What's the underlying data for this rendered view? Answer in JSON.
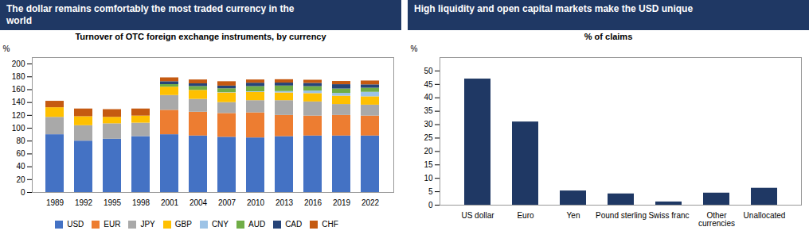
{
  "chart_data": [
    {
      "type": "bar",
      "title": "The dollar remains comfortably the most traded currency in the\nworld",
      "subtitle": "Turnover of OTC foreign exchange instruments, by currency",
      "ylabel": "%",
      "stacked": true,
      "legend": "bottom",
      "categories": [
        "1989",
        "1992",
        "1995",
        "1998",
        "2001",
        "2004",
        "2007",
        "2010",
        "2013",
        "2016",
        "2019",
        "2022"
      ],
      "series": [
        {
          "name": "USD",
          "color": "#4472C4",
          "values": [
            90,
            80,
            83,
            87,
            90,
            88,
            86,
            85,
            87,
            88,
            88,
            88
          ]
        },
        {
          "name": "EUR",
          "color": "#ED7D31",
          "values": [
            0,
            0,
            0,
            0,
            38,
            37,
            37,
            39,
            33,
            31,
            32,
            31
          ]
        },
        {
          "name": "JPY",
          "color": "#A9A9A9",
          "values": [
            27,
            24,
            24,
            21,
            23,
            20,
            17,
            19,
            23,
            22,
            17,
            17
          ]
        },
        {
          "name": "GBP",
          "color": "#FFC000",
          "values": [
            15,
            14,
            10,
            11,
            13,
            14,
            15,
            13,
            12,
            13,
            13,
            13
          ]
        },
        {
          "name": "CNY",
          "color": "#9DC3E6",
          "values": [
            0,
            0,
            0,
            0,
            0,
            0,
            0.5,
            0.9,
            2.2,
            4,
            4.3,
            7
          ]
        },
        {
          "name": "AUD",
          "color": "#70AD47",
          "values": [
            0,
            0,
            0,
            0,
            4,
            6,
            6,
            8,
            8.6,
            6.8,
            6.8,
            6.4
          ]
        },
        {
          "name": "CAD",
          "color": "#264478",
          "values": [
            0,
            0,
            0,
            0,
            4.5,
            4.2,
            4.2,
            5.3,
            4.6,
            5.1,
            6.8,
            5.2
          ]
        },
        {
          "name": "CHF",
          "color": "#C55A11",
          "values": [
            10,
            12,
            12,
            11,
            6,
            6,
            6.8,
            5,
            5.2,
            4.9,
            5,
            6
          ]
        }
      ],
      "ylim": [
        0,
        210
      ],
      "yticks": [
        0,
        20,
        40,
        60,
        80,
        100,
        120,
        140,
        160,
        180,
        200
      ]
    },
    {
      "type": "bar",
      "title": "High liquidity and open capital markets make the USD unique",
      "subtitle": "% of claims",
      "ylabel": "%",
      "categories": [
        "US dollar",
        "Euro",
        "Yen",
        "Pound sterling",
        "Swiss franc",
        "Other\ncurrencies",
        "Unallocated"
      ],
      "values": [
        47,
        31,
        5.3,
        4.2,
        1.2,
        4.5,
        6.3
      ],
      "color": "#1F3864",
      "ylim": [
        0,
        55
      ],
      "yticks": [
        0,
        5,
        10,
        15,
        20,
        25,
        30,
        35,
        40,
        45,
        50
      ]
    }
  ]
}
